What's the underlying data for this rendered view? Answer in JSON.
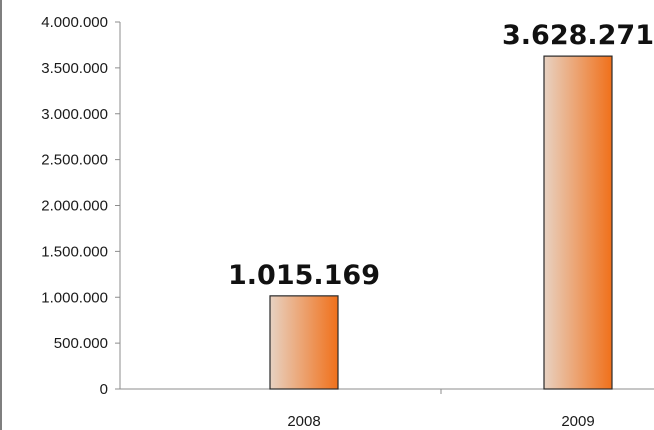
{
  "chart_data": {
    "type": "bar",
    "categories": [
      "2008",
      "2009"
    ],
    "values": [
      1015169,
      3628271
    ],
    "value_labels": [
      "1.015.169",
      "3.628.271"
    ],
    "ylim": [
      0,
      4000000
    ],
    "yticks": [
      0,
      500000,
      1000000,
      1500000,
      2000000,
      2500000,
      3000000,
      3500000,
      4000000
    ],
    "ytick_labels": [
      "0",
      "500.000",
      "1.000.000",
      "1.500.000",
      "2.000.000",
      "2.500.000",
      "3.000.000",
      "3.500.000",
      "4.000.000"
    ],
    "title": "",
    "xlabel": "",
    "ylabel": "",
    "grid": false,
    "legend": "none",
    "colors": {
      "bar_gradient_start": "#e8d2c2",
      "bar_gradient_end": "#f0701a",
      "bar_border": "#2a2a2a",
      "axis": "#8c8c8c",
      "frame": "#555555"
    }
  }
}
